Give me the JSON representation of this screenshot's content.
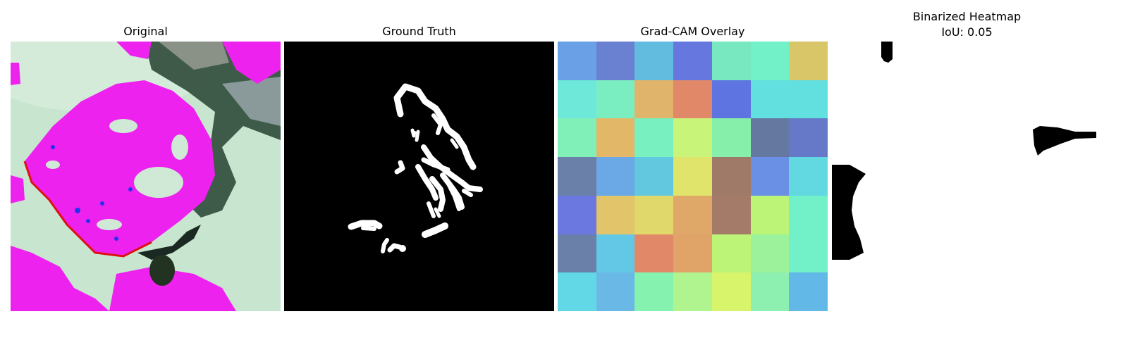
{
  "panels": [
    {
      "title": "Original"
    },
    {
      "title": "Ground Truth"
    },
    {
      "title": "Grad-CAM Overlay"
    },
    {
      "title": "Binarized Heatmap",
      "subtitle": "IoU: 0.05"
    }
  ],
  "colors": {
    "leaf_magenta": "#ee22ee",
    "background_mint": "#cfe9d6",
    "shadow_dark": "#3f5a48",
    "mask_white": "#ffffff",
    "mask_black": "#000000"
  },
  "gradcam_grid": [
    [
      "#6aa0e6",
      "#6a80d0",
      "#62bce0",
      "#6678e0",
      "#78e8c0",
      "#72f0c8",
      "#d8c668"
    ],
    [
      "#6ee8d8",
      "#7aeec0",
      "#e0b46a",
      "#e08868",
      "#5e74e0",
      "#62e0e0",
      "#62e0e0"
    ],
    [
      "#80f0b8",
      "#e2b868",
      "#78f0c0",
      "#c8f47a",
      "#86f0aa",
      "#6478a0",
      "#6678c8"
    ],
    [
      "#6a80a8",
      "#6aa8e6",
      "#62c8e0",
      "#e0e46a",
      "#a07a68",
      "#6a90e6",
      "#62d8e0"
    ],
    [
      "#6a78e0",
      "#e2c46a",
      "#e0d86a",
      "#e0a868",
      "#a47a68",
      "#bcf478",
      "#72f0c8"
    ],
    [
      "#6a80a8",
      "#62c8e6",
      "#e08868",
      "#e0a468",
      "#bcf478",
      "#9cf29a",
      "#72f0c8"
    ],
    [
      "#62d8e6",
      "#6ab8e6",
      "#86f2b0",
      "#b0f490",
      "#d8f46a",
      "#8ef0b0",
      "#62b8e6"
    ]
  ]
}
